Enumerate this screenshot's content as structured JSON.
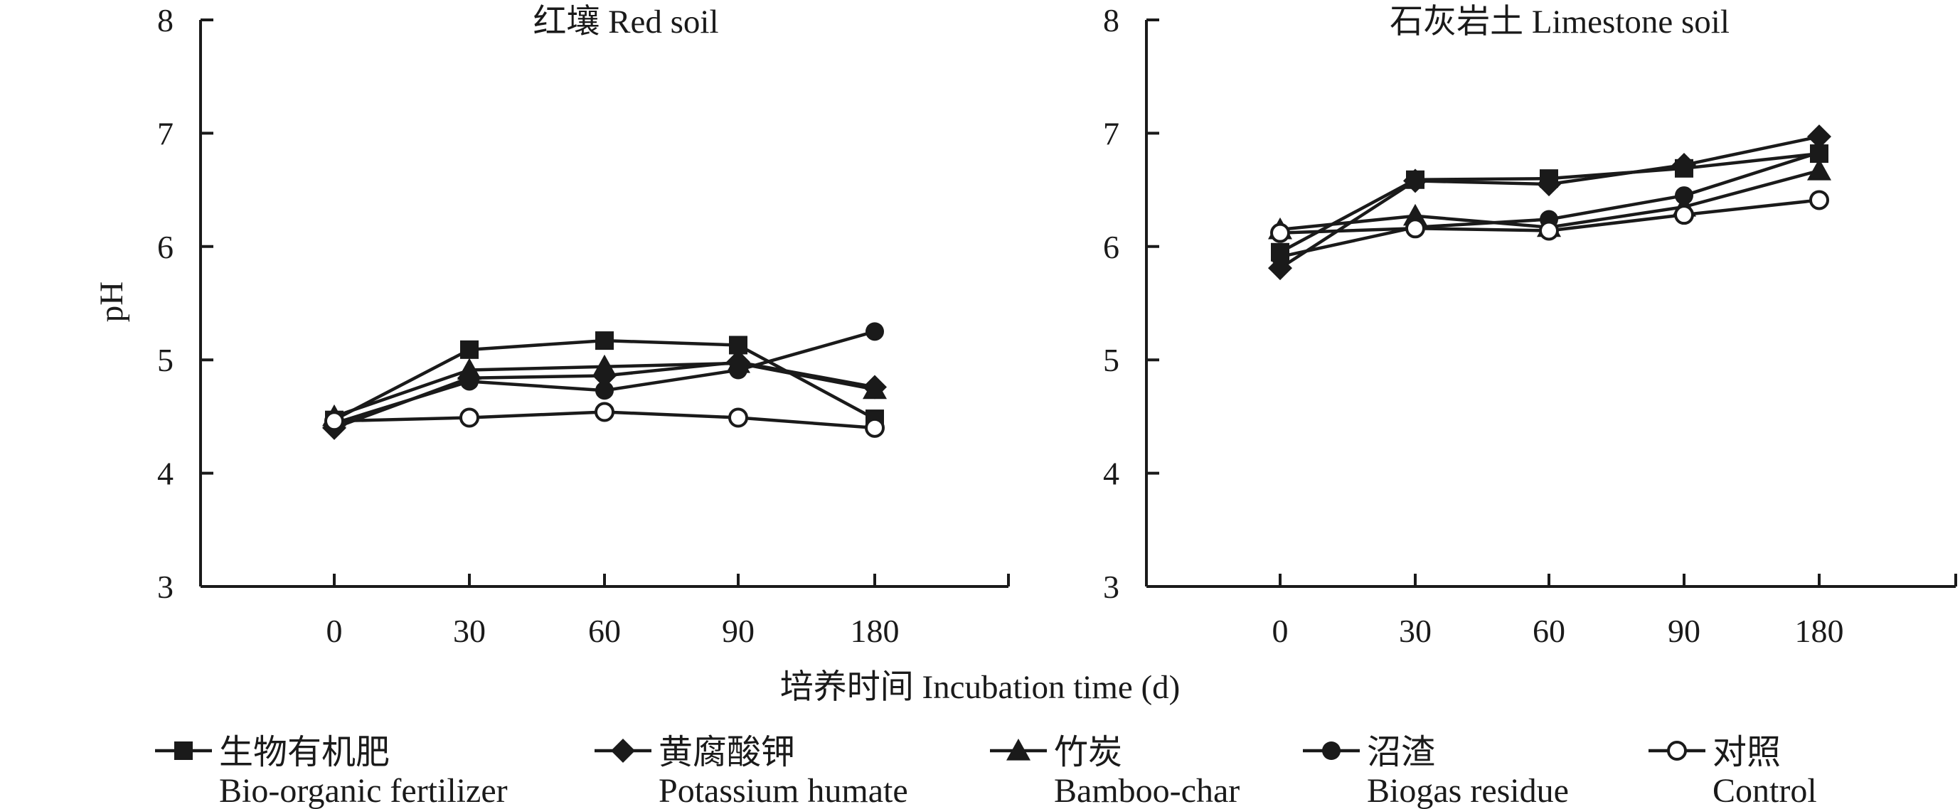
{
  "chart_data": [
    {
      "type": "line",
      "title": "红壤 Red soil",
      "ylabel": "pH",
      "ylim": [
        3,
        8
      ],
      "yticks": [
        "3",
        "4",
        "5",
        "6",
        "7",
        "8"
      ],
      "categories": [
        "0",
        "30",
        "60",
        "90",
        "180"
      ],
      "series": [
        {
          "name": "生物有机肥 Bio-organic fertilizer",
          "marker": "square-filled",
          "values": [
            4.47,
            5.09,
            5.17,
            5.13,
            4.48
          ]
        },
        {
          "name": "黄腐酸钾 Potassium humate",
          "marker": "diamond-filled",
          "values": [
            4.4,
            4.84,
            4.86,
            4.98,
            4.76
          ]
        },
        {
          "name": "竹炭 Bamboo-char",
          "marker": "triangle-filled",
          "values": [
            4.5,
            4.91,
            4.94,
            4.97,
            4.74
          ]
        },
        {
          "name": "沼渣 Biogas residue",
          "marker": "circle-filled",
          "values": [
            4.44,
            4.81,
            4.73,
            4.91,
            5.25
          ]
        },
        {
          "name": "对照 Control",
          "marker": "circle-open",
          "values": [
            4.46,
            4.49,
            4.54,
            4.49,
            4.4
          ]
        }
      ]
    },
    {
      "type": "line",
      "title": "石灰岩土 Limestone soil",
      "ylabel": "",
      "ylim": [
        3,
        8
      ],
      "yticks": [
        "3",
        "4",
        "5",
        "6",
        "7",
        "8"
      ],
      "categories": [
        "0",
        "30",
        "60",
        "90",
        "180"
      ],
      "series": [
        {
          "name": "生物有机肥 Bio-organic fertilizer",
          "marker": "square-filled",
          "values": [
            5.95,
            6.59,
            6.6,
            6.69,
            6.82
          ]
        },
        {
          "name": "黄腐酸钾 Potassium humate",
          "marker": "diamond-filled",
          "values": [
            5.81,
            6.58,
            6.55,
            6.72,
            6.97
          ]
        },
        {
          "name": "竹炭 Bamboo-char",
          "marker": "triangle-filled",
          "values": [
            6.15,
            6.27,
            6.17,
            6.35,
            6.67
          ]
        },
        {
          "name": "沼渣 Biogas residue",
          "marker": "circle-filled",
          "values": [
            5.91,
            6.17,
            6.24,
            6.45,
            6.83
          ]
        },
        {
          "name": "对照 Control",
          "marker": "circle-open",
          "values": [
            6.12,
            6.16,
            6.14,
            6.28,
            6.41
          ]
        }
      ]
    }
  ],
  "xlabel": "培养时间 Incubation time (d)",
  "legend": [
    {
      "marker": "square-filled",
      "zh": "生物有机肥",
      "en": "Bio-organic fertilizer"
    },
    {
      "marker": "diamond-filled",
      "zh": "黄腐酸钾",
      "en": "Potassium humate"
    },
    {
      "marker": "triangle-filled",
      "zh": "竹炭",
      "en": "Bamboo-char"
    },
    {
      "marker": "circle-filled",
      "zh": "沼渣",
      "en": "Biogas residue"
    },
    {
      "marker": "circle-open",
      "zh": "对照",
      "en": "Control"
    }
  ],
  "colors": {
    "ink": "#1a1a1a",
    "background": "#ffffff"
  }
}
